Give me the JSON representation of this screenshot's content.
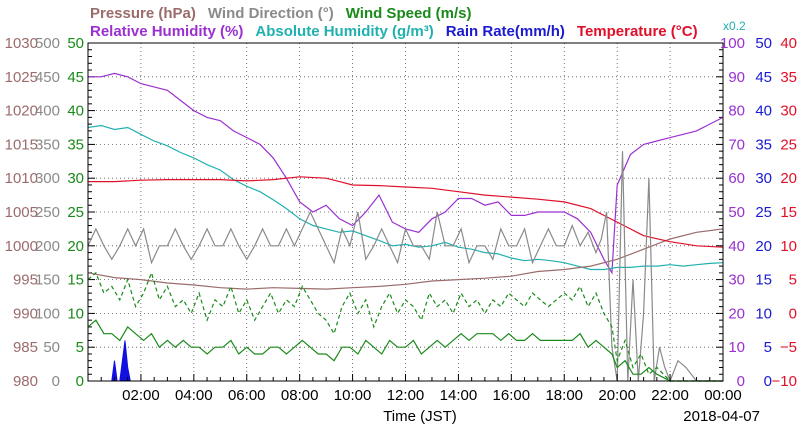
{
  "chart_data": {
    "type": "line",
    "title_lines": [
      [
        {
          "text": "Pressure (hPa)",
          "color": "#9c6b6b"
        },
        {
          "text": "Wind Direction (°)",
          "color": "#8a8a8a"
        },
        {
          "text": "Wind Speed (m/s)",
          "color": "#1a8a1a"
        }
      ],
      [
        {
          "text": "Relative Humidity (%)",
          "color": "#9b30d0"
        },
        {
          "text": "Absolute Humidity (g/m³)",
          "color": "#20b0b0"
        },
        {
          "text": "Rain Rate(mm/h)",
          "color": "#1a1ad0"
        },
        {
          "text": "Temperature (°C)",
          "color": "#e0102a"
        }
      ]
    ],
    "scale_note": "x0.2",
    "xlabel": "Time (JST)",
    "date": "2018-04-07",
    "x_range": [
      0,
      24
    ],
    "x_ticks": [
      "02:00",
      "04:00",
      "06:00",
      "08:00",
      "10:00",
      "12:00",
      "14:00",
      "16:00",
      "18:00",
      "20:00",
      "22:00",
      "00:00"
    ],
    "left_axes": [
      {
        "name": "pressure",
        "color": "#9c6b6b",
        "range": [
          980,
          1030
        ],
        "ticks": [
          "980",
          "985",
          "990",
          "995",
          "1000",
          "1005",
          "1010",
          "1015",
          "1020",
          "1025",
          "1030"
        ]
      },
      {
        "name": "wind-direction",
        "color": "#8a8a8a",
        "range": [
          0,
          500
        ],
        "ticks": [
          "0",
          "50",
          "100",
          "150",
          "200",
          "250",
          "300",
          "350",
          "400",
          "450",
          "500"
        ]
      },
      {
        "name": "wind-speed",
        "color": "#1a8a1a",
        "range": [
          0,
          50
        ],
        "ticks": [
          "0",
          "5",
          "10",
          "15",
          "20",
          "25",
          "30",
          "35",
          "40",
          "45",
          "50"
        ]
      }
    ],
    "right_axes": [
      {
        "name": "relative-humidity",
        "color": "#9b30d0",
        "range": [
          0,
          100
        ],
        "ticks": [
          "0",
          "10",
          "20",
          "30",
          "40",
          "50",
          "60",
          "70",
          "80",
          "90",
          "100"
        ]
      },
      {
        "name": "rain-rate",
        "color": "#1a1ad0",
        "range": [
          0,
          50
        ],
        "ticks": [
          "0",
          "5",
          "10",
          "15",
          "20",
          "25",
          "30",
          "35",
          "40",
          "45",
          "50"
        ]
      },
      {
        "name": "temperature",
        "color": "#e0102a",
        "range": [
          -10,
          40
        ],
        "ticks": [
          "−10",
          "−5",
          "0",
          "5",
          "10",
          "15",
          "20",
          "25",
          "30",
          "35",
          "40"
        ]
      }
    ],
    "series": [
      {
        "name": "Relative Humidity",
        "axis": "relative-humidity",
        "color": "#9b30d0",
        "dash": "",
        "x": [
          0,
          0.5,
          1,
          1.5,
          2,
          2.5,
          3,
          3.5,
          4,
          4.5,
          5,
          5.5,
          6,
          6.5,
          7,
          7.5,
          8,
          8.5,
          9,
          9.5,
          10,
          10.5,
          11,
          11.5,
          12,
          12.5,
          13,
          13.5,
          14,
          14.5,
          15,
          15.5,
          16,
          16.5,
          17,
          17.5,
          18,
          18.5,
          19,
          19.5,
          19.8,
          20,
          20.5,
          21,
          21.5,
          22,
          22.5,
          23,
          23.5,
          24
        ],
        "y": [
          90,
          90,
          91,
          90,
          88,
          87,
          86,
          83,
          80,
          78,
          77,
          74,
          72,
          70,
          66,
          60,
          53,
          50,
          52,
          48,
          46,
          50,
          55,
          47,
          45,
          44,
          48,
          50,
          54,
          54,
          52,
          53,
          49,
          49,
          50,
          50,
          50,
          48,
          44,
          36,
          32,
          58,
          67,
          70,
          71,
          72,
          73,
          74,
          76,
          78
        ]
      },
      {
        "name": "Absolute Humidity",
        "axis": "wind-direction",
        "color": "#20b0b0",
        "dash": "",
        "x": [
          0,
          0.5,
          1,
          1.5,
          2,
          2.5,
          3,
          3.5,
          4,
          4.5,
          5,
          5.5,
          6,
          6.5,
          7,
          7.5,
          8,
          8.5,
          9,
          9.5,
          10,
          10.5,
          11,
          11.5,
          12,
          12.5,
          13,
          13.5,
          14,
          14.5,
          15,
          15.5,
          16,
          16.5,
          17,
          17.5,
          18,
          18.5,
          19,
          19.5,
          20,
          20.5,
          21,
          21.5,
          22,
          22.5,
          23,
          23.5,
          24
        ],
        "y": [
          375,
          378,
          372,
          375,
          365,
          355,
          348,
          338,
          330,
          320,
          312,
          298,
          288,
          280,
          268,
          255,
          240,
          230,
          225,
          220,
          222,
          215,
          208,
          200,
          202,
          198,
          200,
          205,
          198,
          195,
          190,
          188,
          182,
          178,
          180,
          178,
          175,
          170,
          165,
          165,
          168,
          168,
          170,
          170,
          172,
          170,
          172,
          174,
          175
        ]
      },
      {
        "name": "Pressure",
        "axis": "pressure",
        "color": "#9c6b6b",
        "dash": "",
        "x": [
          0,
          1,
          2,
          3,
          4,
          5,
          6,
          7,
          8,
          9,
          10,
          11,
          12,
          13,
          14,
          15,
          16,
          17,
          18,
          19,
          20,
          21,
          22,
          23,
          24
        ],
        "y": [
          996,
          995.3,
          995,
          994.5,
          994.2,
          993.8,
          993.6,
          993.8,
          993.7,
          993.6,
          993.8,
          994,
          994.3,
          994.8,
          995,
          995.2,
          995.5,
          996.2,
          996.5,
          997,
          998,
          999.5,
          1001,
          1002,
          1002.5
        ]
      },
      {
        "name": "Temperature",
        "axis": "temperature",
        "color": "#e0102a",
        "dash": "",
        "x": [
          0,
          1,
          2,
          3,
          4,
          5,
          6,
          7,
          8,
          9,
          9.5,
          10,
          11,
          12,
          13,
          14,
          15,
          16,
          17,
          18,
          19,
          19.5,
          20,
          20.5,
          21,
          22,
          23,
          24
        ],
        "y": [
          19.5,
          19.5,
          19.7,
          19.8,
          19.8,
          19.8,
          19.6,
          19.8,
          20.2,
          20,
          19.5,
          19,
          18.9,
          18.7,
          18.5,
          18,
          17.5,
          17.2,
          16.9,
          16.5,
          15.5,
          14.5,
          13.5,
          12.5,
          11.5,
          10.6,
          10,
          9.8
        ]
      },
      {
        "name": "Wind Direction",
        "axis": "wind-direction",
        "color": "#8a8a8a",
        "dash": "",
        "x": [
          0,
          0.3,
          0.6,
          0.9,
          1.2,
          1.5,
          1.8,
          2.1,
          2.4,
          2.7,
          3,
          3.3,
          3.6,
          3.9,
          4.2,
          4.5,
          4.8,
          5.1,
          5.4,
          5.7,
          6,
          6.3,
          6.6,
          6.9,
          7.2,
          7.5,
          7.8,
          8.1,
          8.4,
          8.7,
          9,
          9.3,
          9.6,
          9.9,
          10.2,
          10.5,
          10.8,
          11.1,
          11.4,
          11.7,
          12,
          12.3,
          12.6,
          12.9,
          13.2,
          13.5,
          13.8,
          14.1,
          14.4,
          14.7,
          15,
          15.3,
          15.6,
          15.9,
          16.2,
          16.5,
          16.8,
          17.1,
          17.4,
          17.7,
          18,
          18.3,
          18.6,
          18.9,
          19.2,
          19.4,
          19.6,
          19.8,
          20,
          20.2,
          20.4,
          20.6,
          20.8,
          21,
          21.2,
          21.4,
          21.6,
          21.8,
          22,
          22.3,
          22.6,
          23,
          24
        ],
        "y": [
          200,
          225,
          200,
          180,
          200,
          225,
          200,
          225,
          175,
          200,
          200,
          225,
          200,
          180,
          200,
          225,
          200,
          200,
          225,
          200,
          180,
          200,
          225,
          200,
          200,
          225,
          200,
          225,
          250,
          225,
          200,
          175,
          225,
          200,
          250,
          180,
          200,
          225,
          200,
          175,
          225,
          200,
          200,
          180,
          250,
          200,
          200,
          225,
          175,
          200,
          200,
          180,
          225,
          200,
          200,
          225,
          175,
          200,
          225,
          200,
          200,
          230,
          200,
          220,
          190,
          210,
          250,
          50,
          0,
          340,
          0,
          150,
          0,
          100,
          300,
          0,
          50,
          20,
          0,
          30,
          20,
          0,
          0
        ]
      },
      {
        "name": "Wind Speed (gust)",
        "axis": "wind-speed",
        "color": "#1a8a1a",
        "dash": "4,3",
        "x": [
          0,
          0.3,
          0.6,
          0.9,
          1.2,
          1.5,
          1.8,
          2.1,
          2.4,
          2.7,
          3,
          3.3,
          3.6,
          3.9,
          4.2,
          4.5,
          4.8,
          5.1,
          5.4,
          5.7,
          6,
          6.3,
          6.6,
          6.9,
          7.2,
          7.5,
          7.8,
          8.1,
          8.4,
          8.7,
          9,
          9.3,
          9.6,
          9.9,
          10.2,
          10.5,
          10.8,
          11.1,
          11.4,
          11.7,
          12,
          12.3,
          12.6,
          12.9,
          13.2,
          13.5,
          13.8,
          14.1,
          14.4,
          14.7,
          15,
          15.3,
          15.6,
          15.9,
          16.2,
          16.5,
          16.8,
          17.1,
          17.4,
          17.7,
          18,
          18.3,
          18.6,
          18.9,
          19.2,
          19.5,
          19.8,
          20,
          20.3,
          20.6,
          20.9,
          21.2,
          21.5,
          22,
          22.5,
          23,
          24
        ],
        "y": [
          15,
          16,
          13,
          14,
          12,
          15,
          11,
          13,
          16,
          12,
          14,
          11,
          12,
          10,
          13,
          9,
          12,
          11,
          14,
          10,
          12,
          9,
          11,
          13,
          10,
          12,
          11,
          14,
          12,
          10,
          9,
          7,
          11,
          13,
          10,
          12,
          8,
          11,
          13,
          10,
          12,
          11,
          9,
          13,
          11,
          12,
          10,
          13,
          11,
          12,
          10,
          12,
          11,
          13,
          12,
          11,
          13,
          12,
          11,
          12,
          13,
          12,
          14,
          11,
          13,
          10,
          8,
          3,
          6,
          2,
          4,
          1,
          2,
          0,
          0,
          0,
          0
        ]
      },
      {
        "name": "Wind Speed",
        "axis": "wind-speed",
        "color": "#1a8a1a",
        "dash": "",
        "x": [
          0,
          0.3,
          0.6,
          0.9,
          1.2,
          1.5,
          1.8,
          2.1,
          2.4,
          2.7,
          3,
          3.3,
          3.6,
          3.9,
          4.2,
          4.5,
          4.8,
          5.1,
          5.4,
          5.7,
          6,
          6.3,
          6.6,
          6.9,
          7.2,
          7.5,
          7.8,
          8.1,
          8.4,
          8.7,
          9,
          9.3,
          9.6,
          9.9,
          10.2,
          10.5,
          10.8,
          11.1,
          11.4,
          11.7,
          12,
          12.3,
          12.6,
          12.9,
          13.2,
          13.5,
          13.8,
          14.1,
          14.4,
          14.7,
          15,
          15.3,
          15.6,
          15.9,
          16.2,
          16.5,
          16.8,
          17.1,
          17.4,
          17.7,
          18,
          18.3,
          18.6,
          18.9,
          19.2,
          19.5,
          19.8,
          20,
          20.3,
          20.6,
          20.9,
          21.2,
          21.5,
          22,
          22.5,
          23,
          24
        ],
        "y": [
          8,
          9,
          7,
          7,
          6,
          8,
          7,
          6,
          7,
          5,
          6,
          5,
          6,
          5,
          5,
          4,
          5,
          5,
          6,
          4,
          5,
          4,
          4,
          5,
          5,
          4,
          5,
          6,
          5,
          4,
          4,
          3,
          5,
          5,
          4,
          6,
          5,
          4,
          6,
          5,
          5,
          6,
          4,
          5,
          6,
          5,
          6,
          7,
          6,
          7,
          7,
          7,
          6,
          7,
          6,
          6,
          7,
          6,
          6,
          6,
          6,
          6,
          7,
          5,
          6,
          5,
          4,
          2,
          3,
          1,
          1,
          2,
          1,
          0,
          0,
          0,
          0
        ]
      },
      {
        "name": "Rain Rate",
        "axis": "rain-rate",
        "color": "#1010e0",
        "dash": "",
        "fill": true,
        "x": [
          0,
          0.9,
          1.0,
          1.1,
          1.2,
          1.3,
          1.4,
          1.5,
          1.6,
          1.7,
          24
        ],
        "y": [
          0,
          0,
          3,
          0,
          0,
          3,
          6,
          2,
          0,
          0,
          0
        ]
      }
    ]
  }
}
